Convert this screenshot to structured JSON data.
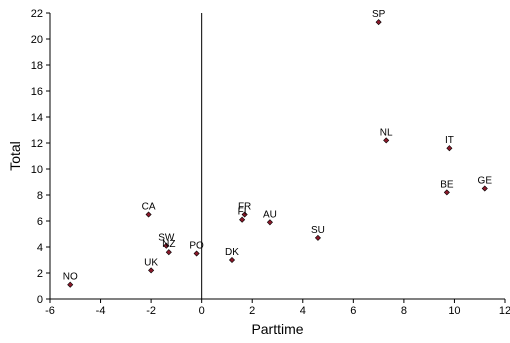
{
  "chart_data": {
    "type": "scatter",
    "title": "",
    "xlabel": "Parttime",
    "ylabel": "Total",
    "xlim": [
      -6,
      12
    ],
    "ylim": [
      0,
      22
    ],
    "xticks": [
      -6,
      -4,
      -2,
      0,
      2,
      4,
      6,
      8,
      10,
      12
    ],
    "yticks": [
      0,
      2,
      4,
      6,
      8,
      10,
      12,
      14,
      16,
      18,
      20,
      22
    ],
    "grid": false,
    "legend": "none",
    "vertical_reference_line_x": 0,
    "marker_color": "#8b1a2b",
    "points": [
      {
        "label": "SP",
        "x": 7.0,
        "y": 21.3
      },
      {
        "label": "NL",
        "x": 7.3,
        "y": 12.2
      },
      {
        "label": "IT",
        "x": 9.8,
        "y": 11.6
      },
      {
        "label": "GE",
        "x": 11.2,
        "y": 8.5
      },
      {
        "label": "BE",
        "x": 9.7,
        "y": 8.2
      },
      {
        "label": "CA",
        "x": -2.1,
        "y": 6.5
      },
      {
        "label": "FR",
        "x": 1.7,
        "y": 6.5
      },
      {
        "label": "FI",
        "x": 1.6,
        "y": 6.1
      },
      {
        "label": "AU",
        "x": 2.7,
        "y": 5.9
      },
      {
        "label": "SU",
        "x": 4.6,
        "y": 4.7
      },
      {
        "label": "SW",
        "x": -1.4,
        "y": 4.1
      },
      {
        "label": "NZ",
        "x": -1.3,
        "y": 3.6
      },
      {
        "label": "PO",
        "x": -0.2,
        "y": 3.5
      },
      {
        "label": "DK",
        "x": 1.2,
        "y": 3.0
      },
      {
        "label": "UK",
        "x": -2.0,
        "y": 2.2
      },
      {
        "label": "NO",
        "x": -5.2,
        "y": 1.1
      }
    ]
  }
}
